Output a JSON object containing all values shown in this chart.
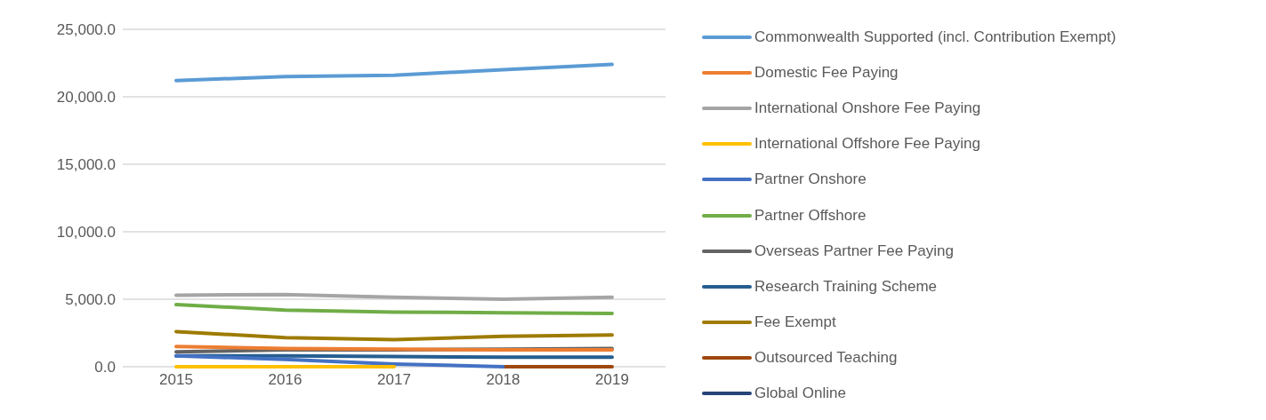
{
  "chart_data": {
    "type": "line",
    "categories": [
      "2015",
      "2016",
      "2017",
      "2018",
      "2019"
    ],
    "series": [
      {
        "name": "Commonwealth Supported (incl. Contribution Exempt)",
        "color": "#5b9bd5",
        "values": [
          21200,
          21500,
          21600,
          22000,
          22400
        ]
      },
      {
        "name": "Domestic Fee Paying",
        "color": "#ed7d31",
        "values": [
          1500,
          1350,
          1300,
          1250,
          1250
        ]
      },
      {
        "name": "International Onshore Fee Paying",
        "color": "#a5a5a5",
        "values": [
          5300,
          5350,
          5150,
          5000,
          5150
        ]
      },
      {
        "name": "International Offshore Fee Paying",
        "color": "#ffc000",
        "values": [
          0,
          0,
          0,
          null,
          null
        ]
      },
      {
        "name": "Partner Onshore",
        "color": "#4472c4",
        "values": [
          800,
          550,
          200,
          0,
          null
        ]
      },
      {
        "name": "Partner Offshore",
        "color": "#70ad47",
        "values": [
          4600,
          4200,
          4050,
          4000,
          3950
        ]
      },
      {
        "name": "Overseas Partner Fee Paying",
        "color": "#636363",
        "values": [
          1100,
          1250,
          1250,
          1300,
          1350
        ]
      },
      {
        "name": "Research Training Scheme",
        "color": "#255e91",
        "values": [
          800,
          800,
          750,
          700,
          700
        ]
      },
      {
        "name": "Fee Exempt",
        "color": "#9e7b00",
        "values": [
          2600,
          2150,
          2000,
          2250,
          2350
        ]
      },
      {
        "name": "Outsourced Teaching",
        "color": "#9e480e",
        "values": [
          null,
          null,
          null,
          0,
          0
        ]
      },
      {
        "name": "Global Online",
        "color": "#264478",
        "values": [
          null,
          null,
          null,
          null,
          null
        ]
      }
    ],
    "ylim": [
      0,
      25000
    ],
    "yticks": [
      {
        "value": 0,
        "label": "0.0"
      },
      {
        "value": 5000,
        "label": "5,000.0"
      },
      {
        "value": 10000,
        "label": "10,000.0"
      },
      {
        "value": 15000,
        "label": "15,000.0"
      },
      {
        "value": 20000,
        "label": "20,000.0"
      },
      {
        "value": 25000,
        "label": "25,000.0"
      }
    ],
    "grid": "y",
    "legend": "right",
    "marker": "none",
    "line_style": "solid"
  }
}
